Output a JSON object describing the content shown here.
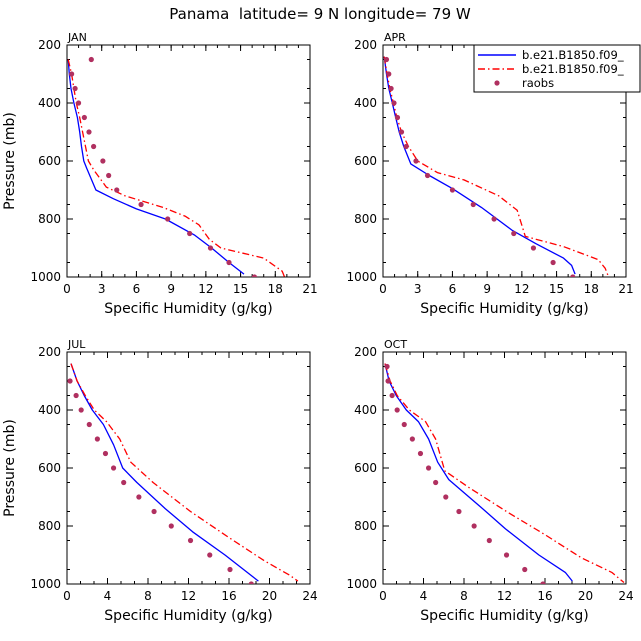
{
  "title": "Panama  latitude= 9 N longitude= 79 W",
  "legend": {
    "position": "top-right",
    "entries": [
      {
        "label": "b.e21.B1850.f09_",
        "color": "#0000ff",
        "style": "solid"
      },
      {
        "label": "b.e21.B1850.f09_",
        "color": "#ff0000",
        "style": "dashed"
      },
      {
        "label": "raobs",
        "color": "#b03060",
        "style": "dots"
      }
    ]
  },
  "colors": {
    "model_solid": "#0000ff",
    "model_dashed": "#ff0000",
    "raobs": "#b03060"
  },
  "chart_data": [
    {
      "type": "line",
      "title": "JAN",
      "xlabel": "Specific Humidity (g/kg)",
      "ylabel": "Pressure (mb)",
      "xlim": [
        0,
        21
      ],
      "ylim": [
        1000,
        200
      ],
      "xticks": [
        "0",
        "3",
        "6",
        "9",
        "12",
        "15",
        "18",
        "21"
      ],
      "yticks": [
        "200",
        "400",
        "600",
        "800",
        "1000"
      ],
      "series": [
        {
          "name": "b.e21.B1850.f09_",
          "color": "#0000ff",
          "style": "solid",
          "points": [
            [
              0.1,
              250
            ],
            [
              0.2,
              300
            ],
            [
              0.35,
              350
            ],
            [
              0.6,
              400
            ],
            [
              0.9,
              450
            ],
            [
              1.1,
              500
            ],
            [
              1.25,
              550
            ],
            [
              1.45,
              600
            ],
            [
              1.7,
              625
            ],
            [
              2.5,
              700
            ],
            [
              4,
              730
            ],
            [
              6,
              765
            ],
            [
              8.5,
              800
            ],
            [
              11,
              855
            ],
            [
              12.5,
              900
            ],
            [
              14,
              950
            ],
            [
              15.3,
              990
            ]
          ]
        },
        {
          "name": "b.e21.B1850.f09_",
          "color": "#ff0000",
          "style": "dashed",
          "points": [
            [
              0.1,
              250
            ],
            [
              0.4,
              300
            ],
            [
              0.6,
              350
            ],
            [
              0.8,
              400
            ],
            [
              1.1,
              450
            ],
            [
              1.35,
              500
            ],
            [
              1.6,
              550
            ],
            [
              1.85,
              600
            ],
            [
              2.3,
              630
            ],
            [
              3.4,
              690
            ],
            [
              5,
              720
            ],
            [
              8.3,
              760
            ],
            [
              10.2,
              790
            ],
            [
              11.4,
              820
            ],
            [
              12.3,
              870
            ],
            [
              13.3,
              900
            ],
            [
              17,
              935
            ],
            [
              18.6,
              980
            ],
            [
              18.8,
              1000
            ]
          ]
        },
        {
          "name": "raobs",
          "color": "#b03060",
          "style": "dots",
          "points": [
            [
              2.1,
              250
            ],
            [
              0.4,
              300
            ],
            [
              0.7,
              350
            ],
            [
              1.0,
              400
            ],
            [
              1.5,
              450
            ],
            [
              1.9,
              500
            ],
            [
              2.3,
              550
            ],
            [
              3.1,
              600
            ],
            [
              3.6,
              650
            ],
            [
              4.3,
              700
            ],
            [
              6.4,
              750
            ],
            [
              8.7,
              800
            ],
            [
              10.6,
              850
            ],
            [
              12.4,
              900
            ],
            [
              14.0,
              950
            ],
            [
              16.2,
              1000
            ]
          ]
        }
      ]
    },
    {
      "type": "line",
      "title": "APR",
      "xlabel": "Specific Humidity (g/kg)",
      "ylabel": "",
      "xlim": [
        0,
        21
      ],
      "ylim": [
        1000,
        200
      ],
      "xticks": [
        "0",
        "3",
        "6",
        "9",
        "12",
        "15",
        "18",
        "21"
      ],
      "yticks": [
        "200",
        "400",
        "600",
        "800",
        "1000"
      ],
      "series": [
        {
          "name": "b.e21.B1850.f09_",
          "color": "#0000ff",
          "style": "solid",
          "points": [
            [
              0.1,
              240
            ],
            [
              0.3,
              300
            ],
            [
              0.5,
              350
            ],
            [
              0.8,
              400
            ],
            [
              1.1,
              450
            ],
            [
              1.4,
              500
            ],
            [
              1.8,
              550
            ],
            [
              2.4,
              610
            ],
            [
              4,
              650
            ],
            [
              6,
              695
            ],
            [
              8.5,
              760
            ],
            [
              11.2,
              840
            ],
            [
              13.2,
              885
            ],
            [
              15.6,
              935
            ],
            [
              16.3,
              960
            ],
            [
              16.6,
              990
            ]
          ]
        },
        {
          "name": "b.e21.B1850.f09_",
          "color": "#ff0000",
          "style": "dashed",
          "points": [
            [
              0.1,
              240
            ],
            [
              0.35,
              300
            ],
            [
              0.6,
              350
            ],
            [
              0.9,
              400
            ],
            [
              1.2,
              450
            ],
            [
              1.6,
              500
            ],
            [
              2.2,
              550
            ],
            [
              3,
              600
            ],
            [
              4.7,
              640
            ],
            [
              7,
              665
            ],
            [
              10,
              720
            ],
            [
              11.6,
              770
            ],
            [
              12.3,
              860
            ],
            [
              15.6,
              895
            ],
            [
              18.6,
              940
            ],
            [
              19.2,
              970
            ],
            [
              19.5,
              1000
            ]
          ]
        },
        {
          "name": "raobs",
          "color": "#b03060",
          "style": "dots",
          "points": [
            [
              0.3,
              250
            ],
            [
              0.5,
              300
            ],
            [
              0.7,
              350
            ],
            [
              0.95,
              400
            ],
            [
              1.25,
              450
            ],
            [
              1.6,
              500
            ],
            [
              2.0,
              550
            ],
            [
              2.85,
              600
            ],
            [
              3.85,
              650
            ],
            [
              6.0,
              700
            ],
            [
              7.8,
              750
            ],
            [
              9.6,
              800
            ],
            [
              11.3,
              850
            ],
            [
              13.0,
              900
            ],
            [
              14.7,
              950
            ],
            [
              16.4,
              1000
            ]
          ]
        }
      ]
    },
    {
      "type": "line",
      "title": "JUL",
      "xlabel": "Specific Humidity (g/kg)",
      "ylabel": "Pressure (mb)",
      "xlim": [
        0,
        24
      ],
      "ylim": [
        1000,
        200
      ],
      "xticks": [
        "0",
        "4",
        "8",
        "12",
        "16",
        "20",
        "24"
      ],
      "yticks": [
        "200",
        "400",
        "600",
        "800",
        "1000"
      ],
      "series": [
        {
          "name": "b.e21.B1850.f09_",
          "color": "#0000ff",
          "style": "solid",
          "points": [
            [
              0.4,
              240
            ],
            [
              1,
              300
            ],
            [
              1.7,
              350
            ],
            [
              2.5,
              400
            ],
            [
              3.6,
              450
            ],
            [
              4.6,
              520
            ],
            [
              5.5,
              600
            ],
            [
              6.9,
              650
            ],
            [
              9.7,
              740
            ],
            [
              12.4,
              820
            ],
            [
              15.6,
              900
            ],
            [
              18.9,
              990
            ]
          ]
        },
        {
          "name": "b.e21.B1850.f09_",
          "color": "#ff0000",
          "style": "dashed",
          "points": [
            [
              0.4,
              240
            ],
            [
              1,
              300
            ],
            [
              1.8,
              350
            ],
            [
              2.7,
              400
            ],
            [
              3.9,
              440
            ],
            [
              5.2,
              500
            ],
            [
              6.3,
              580
            ],
            [
              8.5,
              650
            ],
            [
              12.2,
              750
            ],
            [
              16,
              840
            ],
            [
              19.5,
              920
            ],
            [
              22,
              970
            ],
            [
              22.8,
              990
            ]
          ]
        },
        {
          "name": "raobs",
          "color": "#b03060",
          "style": "dots",
          "points": [
            [
              0.3,
              300
            ],
            [
              0.9,
              350
            ],
            [
              1.4,
              400
            ],
            [
              2.2,
              450
            ],
            [
              3.0,
              500
            ],
            [
              3.8,
              550
            ],
            [
              4.6,
              600
            ],
            [
              5.6,
              650
            ],
            [
              7.1,
              700
            ],
            [
              8.6,
              750
            ],
            [
              10.3,
              800
            ],
            [
              12.2,
              850
            ],
            [
              14.1,
              900
            ],
            [
              16.1,
              950
            ],
            [
              18.2,
              1000
            ]
          ]
        }
      ]
    },
    {
      "type": "line",
      "title": "OCT",
      "xlabel": "Specific Humidity (g/kg)",
      "ylabel": "",
      "xlim": [
        0,
        24
      ],
      "ylim": [
        1000,
        200
      ],
      "xticks": [
        "0",
        "4",
        "8",
        "12",
        "16",
        "20",
        "24"
      ],
      "yticks": [
        "200",
        "400",
        "600",
        "800",
        "1000"
      ],
      "series": [
        {
          "name": "b.e21.B1850.f09_",
          "color": "#0000ff",
          "style": "solid",
          "points": [
            [
              0.2,
              240
            ],
            [
              0.6,
              300
            ],
            [
              1.3,
              350
            ],
            [
              2.3,
              400
            ],
            [
              3.5,
              440
            ],
            [
              4.5,
              500
            ],
            [
              5.4,
              580
            ],
            [
              6.5,
              640
            ],
            [
              9.5,
              730
            ],
            [
              12.1,
              810
            ],
            [
              15.4,
              900
            ],
            [
              18,
              960
            ],
            [
              18.7,
              990
            ]
          ]
        },
        {
          "name": "b.e21.B1850.f09_",
          "color": "#ff0000",
          "style": "dashed",
          "points": [
            [
              0.2,
              240
            ],
            [
              0.7,
              300
            ],
            [
              1.4,
              350
            ],
            [
              2.6,
              400
            ],
            [
              4.2,
              440
            ],
            [
              5.2,
              500
            ],
            [
              6.1,
              610
            ],
            [
              8.6,
              670
            ],
            [
              12.2,
              750
            ],
            [
              16,
              830
            ],
            [
              19.6,
              910
            ],
            [
              22.6,
              960
            ],
            [
              23.8,
              995
            ]
          ]
        },
        {
          "name": "raobs",
          "color": "#b03060",
          "style": "dots",
          "points": [
            [
              0.4,
              250
            ],
            [
              0.5,
              300
            ],
            [
              0.9,
              350
            ],
            [
              1.4,
              400
            ],
            [
              2.1,
              450
            ],
            [
              2.9,
              500
            ],
            [
              3.7,
              550
            ],
            [
              4.5,
              600
            ],
            [
              5.2,
              650
            ],
            [
              6.2,
              700
            ],
            [
              7.5,
              750
            ],
            [
              9.0,
              800
            ],
            [
              10.5,
              850
            ],
            [
              12.2,
              900
            ],
            [
              14.0,
              950
            ],
            [
              15.8,
              1000
            ],
            [
              17.6,
              1050
            ]
          ]
        }
      ]
    }
  ]
}
